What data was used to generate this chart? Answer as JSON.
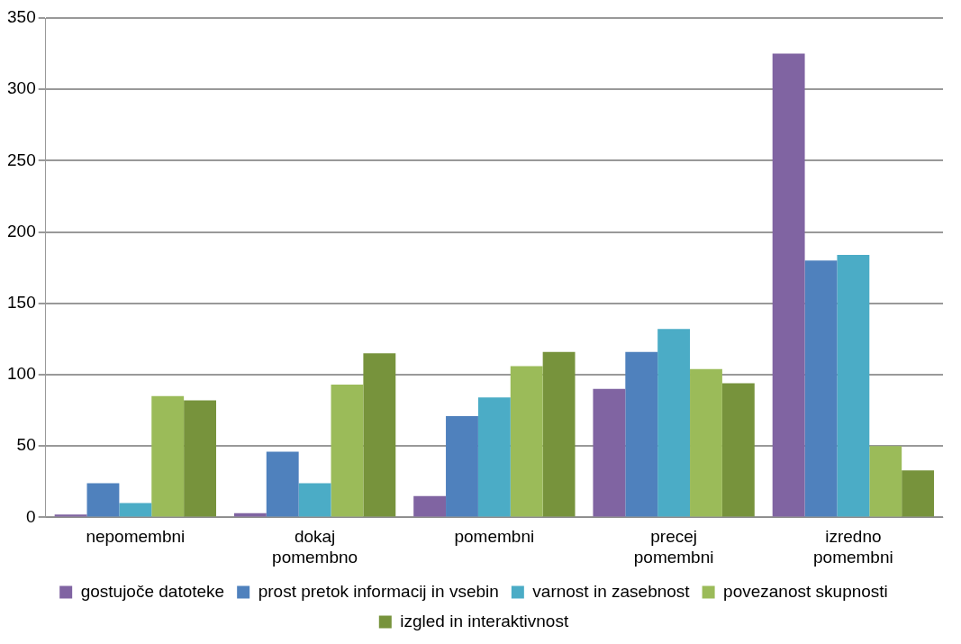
{
  "chart_data": {
    "type": "bar",
    "categories": [
      "nepomembni",
      "dokaj pomembno",
      "pomembni",
      "precej pomembni",
      "izredno pomembni"
    ],
    "series": [
      {
        "name": "gostujoče datoteke",
        "color": "#8064a2",
        "values": [
          2,
          3,
          15,
          90,
          325
        ]
      },
      {
        "name": "prost pretok informacij in vsebin",
        "color": "#4f81bd",
        "values": [
          24,
          46,
          71,
          116,
          180
        ]
      },
      {
        "name": "varnost in zasebnost",
        "color": "#4bacc6",
        "values": [
          10,
          24,
          84,
          132,
          184
        ]
      },
      {
        "name": "povezanost skupnosti",
        "color": "#9bbb59",
        "values": [
          85,
          93,
          106,
          104,
          50
        ]
      },
      {
        "name": "izgled in interaktivnost",
        "color": "#77933c",
        "values": [
          82,
          115,
          116,
          94,
          33
        ]
      }
    ],
    "ylim": [
      0,
      350
    ],
    "yticks": [
      0,
      50,
      100,
      150,
      200,
      250,
      300,
      350
    ],
    "grid": "y",
    "legend": "bottom"
  }
}
